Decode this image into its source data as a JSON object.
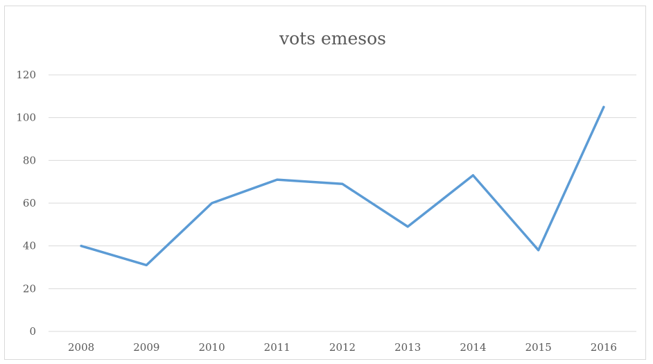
{
  "chart_data": {
    "type": "line",
    "title": "vots emesos",
    "xlabel": "",
    "ylabel": "",
    "categories": [
      "2008",
      "2009",
      "2010",
      "2011",
      "2012",
      "2013",
      "2014",
      "2015",
      "2016"
    ],
    "series": [
      {
        "values": [
          40,
          31,
          60,
          71,
          69,
          49,
          73,
          38,
          105
        ],
        "color": "#5b9bd5"
      }
    ],
    "ylim": [
      0,
      120
    ],
    "yticks": [
      0,
      20,
      40,
      60,
      80,
      100,
      120
    ],
    "grid": true,
    "legend": "none"
  }
}
